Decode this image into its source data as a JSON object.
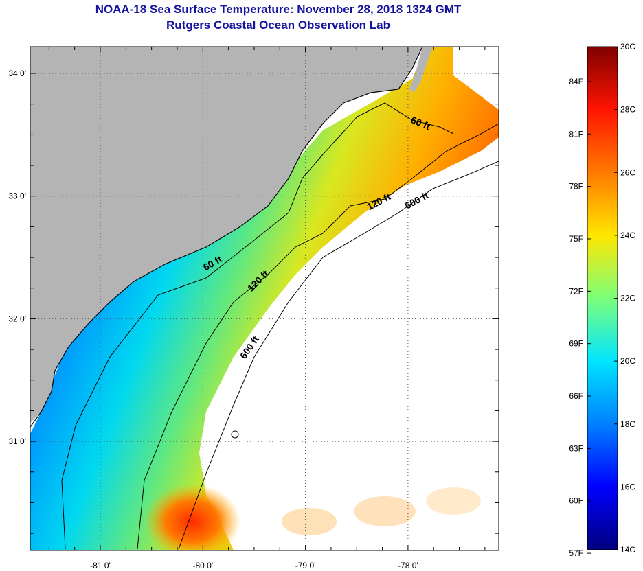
{
  "header": {
    "title_line1": "NOAA-18 Sea Surface Temperature:  November 28, 2018 1324 GMT",
    "title_line2": "Rutgers Coastal Ocean Observation Lab"
  },
  "map": {
    "x_ticks": [
      {
        "lon": -81,
        "label": "-81 0'"
      },
      {
        "lon": -80,
        "label": "-80 0'"
      },
      {
        "lon": -79,
        "label": "-79 0'"
      },
      {
        "lon": -78,
        "label": "-78 0'"
      }
    ],
    "y_ticks": [
      {
        "lat": 34,
        "label": "34 0'"
      },
      {
        "lat": 33,
        "label": "33 0'"
      },
      {
        "lat": 32,
        "label": "32 0'"
      },
      {
        "lat": 31,
        "label": "31 0'"
      }
    ],
    "contour_labels": [
      {
        "text": "60 ft",
        "lon": -77.89,
        "lat": 33.57
      },
      {
        "text": "120 ft",
        "lon": -78.27,
        "lat": 32.93
      },
      {
        "text": "600 ft",
        "lon": -77.9,
        "lat": 32.94
      },
      {
        "text": "60 ft",
        "lon": -79.89,
        "lat": 32.43
      },
      {
        "text": "120 ft",
        "lon": -79.44,
        "lat": 32.29
      },
      {
        "text": "600 ft",
        "lon": -79.52,
        "lat": 31.75
      }
    ],
    "colors": {
      "land": "#b4b4b4",
      "ocean_no_data": "#ffffff",
      "grid": "#555555"
    }
  },
  "colorbar": {
    "fahrenheit_labels": [
      "84F",
      "81F",
      "78F",
      "75F",
      "72F",
      "69F",
      "66F",
      "63F",
      "60F",
      "57F"
    ],
    "celsius_labels": [
      "30C",
      "28C",
      "26C",
      "24C",
      "22C",
      "20C",
      "18C",
      "16C",
      "14C"
    ],
    "range_celsius": [
      14,
      30
    ],
    "stops": [
      "#00007f",
      "#0000ff",
      "#0080ff",
      "#00e5ff",
      "#7dff7a",
      "#ffe600",
      "#ff7a00",
      "#ff1400",
      "#7f0000"
    ]
  }
}
